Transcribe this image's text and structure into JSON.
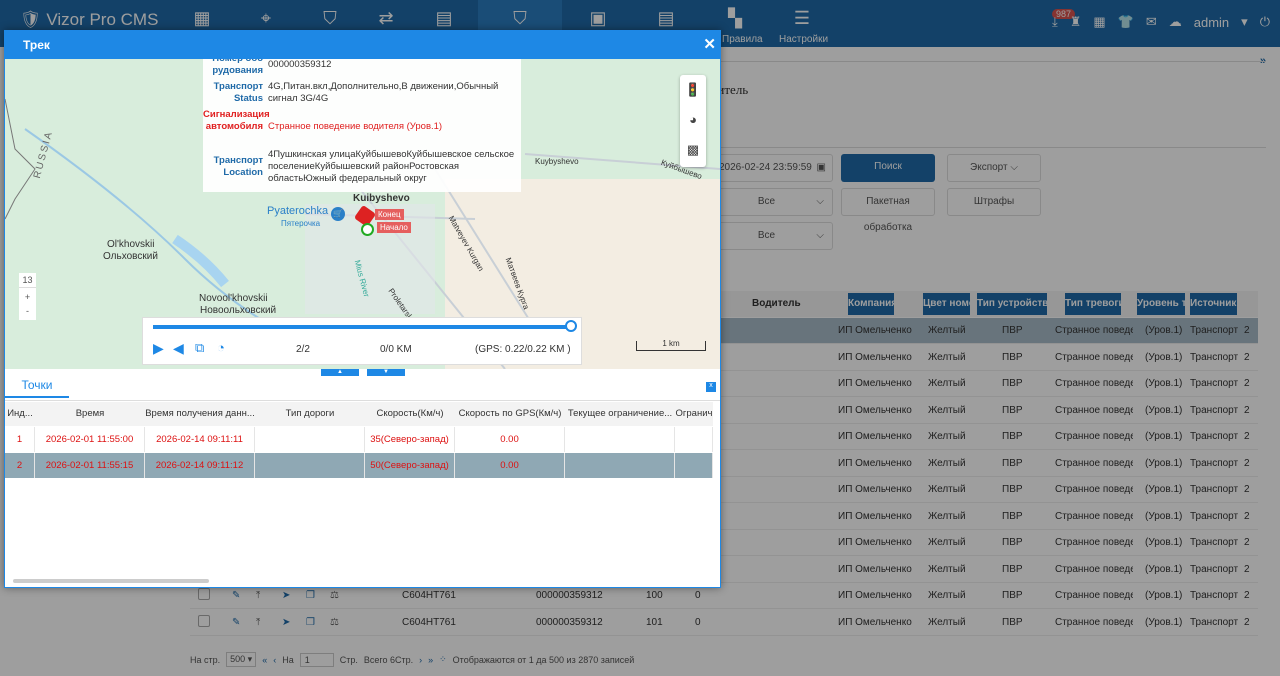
{
  "app": {
    "logo": "Vizor Pro CMS",
    "nav": [
      {
        "icon": "report-icon"
      },
      {
        "icon": "map-location-icon"
      },
      {
        "icon": "shield-icon"
      },
      {
        "icon": "exchange-icon"
      },
      {
        "icon": "vehicle-icon"
      },
      {
        "icon": "alarm-shield-icon",
        "active": true
      },
      {
        "icon": "video-report-icon"
      },
      {
        "icon": "document-icon"
      },
      {
        "icon": "rules-icon",
        "label": "Правила"
      },
      {
        "icon": "settings-icon",
        "label": "Настройки"
      }
    ],
    "badge": "987",
    "user": "admin"
  },
  "page": {
    "heading": "Водитель",
    "date_end": "2026-02-24 23:59:59",
    "search": "Поиск",
    "export": "Экспорт",
    "select1": "Все",
    "select2": "Все",
    "batch": "Пакетная обработка",
    "fines": "Штрафы",
    "columns": [
      "Водитель",
      "Компания",
      "Цвет номе",
      "Тип устройства",
      "Тип тревоги",
      "Уровень тр",
      "Источник т"
    ],
    "row": {
      "company": "ИП Омельченко",
      "color": "Желтый",
      "device": "ПВР",
      "alarm": "Странное поведени",
      "level": "(Уров.1)",
      "source": "Транспорт",
      "extra": "2"
    },
    "visible_rows": [
      {
        "plate": "C604HT761",
        "device_no": "000000359312",
        "n": "100",
        "v": "0"
      },
      {
        "plate": "C604HT761",
        "device_no": "000000359312",
        "n": "101",
        "v": "0"
      }
    ],
    "pager": {
      "per_page_label": "На стр.",
      "per_page": "500",
      "goto_label": "На",
      "page": "1",
      "pages_label": "Стр.",
      "total_pages": "Всего 6Стр.",
      "summary": "Отображаются от 1 да 500 из 2870 записей"
    }
  },
  "modal": {
    "title": "Трек",
    "close": "x",
    "info": [
      {
        "label": "Номер обо рудования",
        "value": "000000359312"
      },
      {
        "label": "Транспорт Status",
        "value": "4G,Питан.вкл,Дополнительно,В движении,Обычный сигнал 3G/4G"
      },
      {
        "label": "Сигнализация автомобиля",
        "value": "Странное поведение водителя (Уров.1)",
        "alert": true
      },
      {
        "label": "Транспорт Location",
        "value": "4Пушкинская улицаКуйбышевоКуйбышевское сельское поселениеКуйбышевский районРостовская областьЮжный федеральный округ"
      }
    ],
    "map": {
      "labels": [
        "Kuibyshevo",
        "Pyaterochka",
        "Пятерочка",
        "Ol'khovskii",
        "Ольховский",
        "Novool'khovskii",
        "Новоольховский",
        "RUSSIA",
        "Kuybyshevo",
        "Куйбышево",
        "Matveyev Kurgan",
        "Матвеев Курга",
        "Proletarskaya Ulitsa",
        "Mius River"
      ],
      "end_marker": "Конец",
      "start_marker": "Начало",
      "zoom": "13",
      "scale": "1 km"
    },
    "player": {
      "progress": 1.0,
      "points": "2/2",
      "distance": "0/0 KM",
      "gps": "(GPS: 0.22/0.22 KM )"
    },
    "tab": "Точки",
    "columns": [
      "Инд...",
      "Время",
      "Время получения данн...",
      "Тип дороги",
      "Скорость(Км/ч)",
      "Скорость по GPS(Км/ч)",
      "Текущее ограничение...",
      "Огранич"
    ],
    "rows": [
      [
        "1",
        "2026-02-01 11:55:00",
        "2026-02-14 09:11:11",
        "",
        "35(Северо-запад)",
        "0.00",
        "",
        ""
      ],
      [
        "2",
        "2026-02-01 11:55:15",
        "2026-02-14 09:11:12",
        "",
        "50(Северо-запад)",
        "0.00",
        "",
        ""
      ]
    ]
  }
}
